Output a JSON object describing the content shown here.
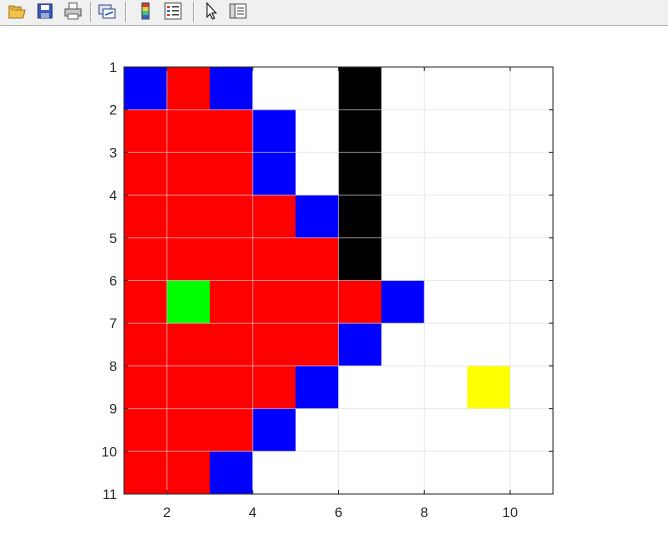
{
  "toolbar": {
    "buttons": [
      {
        "name": "open-file-icon"
      },
      {
        "name": "save-figure-icon"
      },
      {
        "name": "print-figure-icon"
      },
      {
        "name": "link-plot-icon"
      },
      {
        "name": "insert-colorbar-icon"
      },
      {
        "name": "insert-legend-icon"
      },
      {
        "name": "edit-plot-arrow-icon"
      },
      {
        "name": "open-property-inspector-icon"
      }
    ]
  },
  "colors": {
    "toolbar_bg": "#f0f0f0",
    "axes_border": "#262626",
    "grid": "#dcdcdc"
  },
  "chart_data": {
    "type": "heatmap",
    "title": "",
    "xlabel": "",
    "ylabel": "",
    "x_ticks": [
      2,
      4,
      6,
      8,
      10
    ],
    "y_ticks": [
      1,
      2,
      3,
      4,
      5,
      6,
      7,
      8,
      9,
      10,
      11
    ],
    "xlim": [
      1,
      11
    ],
    "ylim": [
      1,
      11
    ],
    "y_direction": "reverse",
    "grid": true,
    "legend": "none",
    "palette": {
      "W": "#ffffff",
      "R": "#ff0000",
      "B": "#0000ff",
      "K": "#000000",
      "G": "#00ff00",
      "Y": "#ffff00"
    },
    "rows": [
      [
        "B",
        "R",
        "B",
        "W",
        "W",
        "K",
        "W",
        "W",
        "W",
        "W"
      ],
      [
        "R",
        "R",
        "R",
        "B",
        "W",
        "K",
        "W",
        "W",
        "W",
        "W"
      ],
      [
        "R",
        "R",
        "R",
        "B",
        "W",
        "K",
        "W",
        "W",
        "W",
        "W"
      ],
      [
        "R",
        "R",
        "R",
        "R",
        "B",
        "K",
        "W",
        "W",
        "W",
        "W"
      ],
      [
        "R",
        "R",
        "R",
        "R",
        "R",
        "K",
        "W",
        "W",
        "W",
        "W"
      ],
      [
        "R",
        "G",
        "R",
        "R",
        "R",
        "R",
        "B",
        "W",
        "W",
        "W"
      ],
      [
        "R",
        "R",
        "R",
        "R",
        "R",
        "B",
        "W",
        "W",
        "W",
        "W"
      ],
      [
        "R",
        "R",
        "R",
        "R",
        "B",
        "W",
        "W",
        "W",
        "Y",
        "W"
      ],
      [
        "R",
        "R",
        "R",
        "B",
        "W",
        "W",
        "W",
        "W",
        "W",
        "W"
      ],
      [
        "R",
        "R",
        "B",
        "W",
        "W",
        "W",
        "W",
        "W",
        "W",
        "W"
      ]
    ]
  }
}
